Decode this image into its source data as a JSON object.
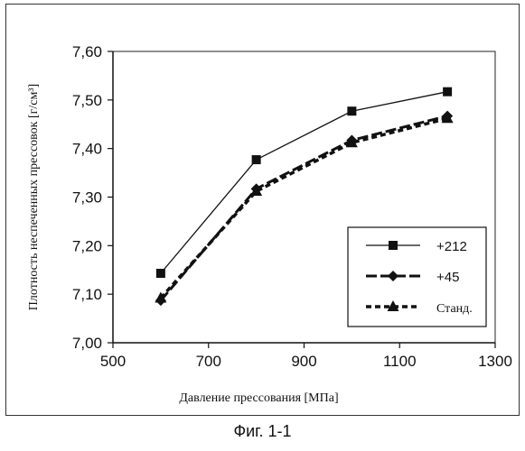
{
  "caption": "Фиг. 1-1",
  "chart_data": {
    "type": "line",
    "xlabel": "Давление прессования [МПа]",
    "ylabel": "Плотность неспеченных прессовок [г/см³]",
    "xlim": [
      500,
      1300
    ],
    "ylim": [
      7.0,
      7.6
    ],
    "x_ticks": [
      "500",
      "700",
      "900",
      "1100",
      "1300"
    ],
    "y_ticks": [
      "7,00",
      "7,10",
      "7,20",
      "7,30",
      "7,40",
      "7,50",
      "7,60"
    ],
    "grid": false,
    "legend_position": "bottom-right inside plot",
    "series": [
      {
        "name": "+212",
        "marker": "square",
        "line": "solid-thin",
        "x": [
          600,
          800,
          1000,
          1200
        ],
        "y": [
          7.143,
          7.377,
          7.477,
          7.517
        ]
      },
      {
        "name": "+45",
        "marker": "diamond",
        "line": "long-dash",
        "x": [
          600,
          800,
          1000,
          1200
        ],
        "y": [
          7.087,
          7.317,
          7.417,
          7.467
        ]
      },
      {
        "name": "Станд.",
        "marker": "triangle",
        "line": "short-dash",
        "x": [
          600,
          800,
          1000,
          1200
        ],
        "y": [
          7.092,
          7.312,
          7.412,
          7.462
        ]
      }
    ]
  }
}
